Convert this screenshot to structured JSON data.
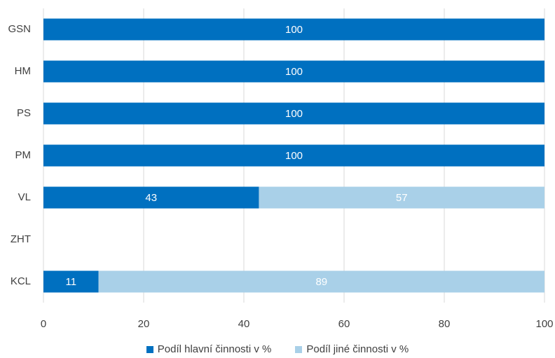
{
  "chart_data": {
    "type": "bar",
    "orientation": "horizontal",
    "stacked": true,
    "categories": [
      "GSN",
      "HM",
      "PS",
      "PM",
      "VL",
      "ZHT",
      "KCL"
    ],
    "series": [
      {
        "name": "Podíl hlavní činnosti v %",
        "color": "#0070C0",
        "values": [
          100,
          100,
          100,
          100,
          43,
          0,
          11
        ]
      },
      {
        "name": "Podíl jiné činnosti v %",
        "color": "#A9D0E8",
        "values": [
          0,
          0,
          0,
          0,
          57,
          0,
          89
        ]
      }
    ],
    "xlim": [
      0,
      100
    ],
    "xticks": [
      0,
      20,
      40,
      60,
      80,
      100
    ],
    "grid": "vertical",
    "legend_position": "bottom",
    "data_labels": true
  }
}
